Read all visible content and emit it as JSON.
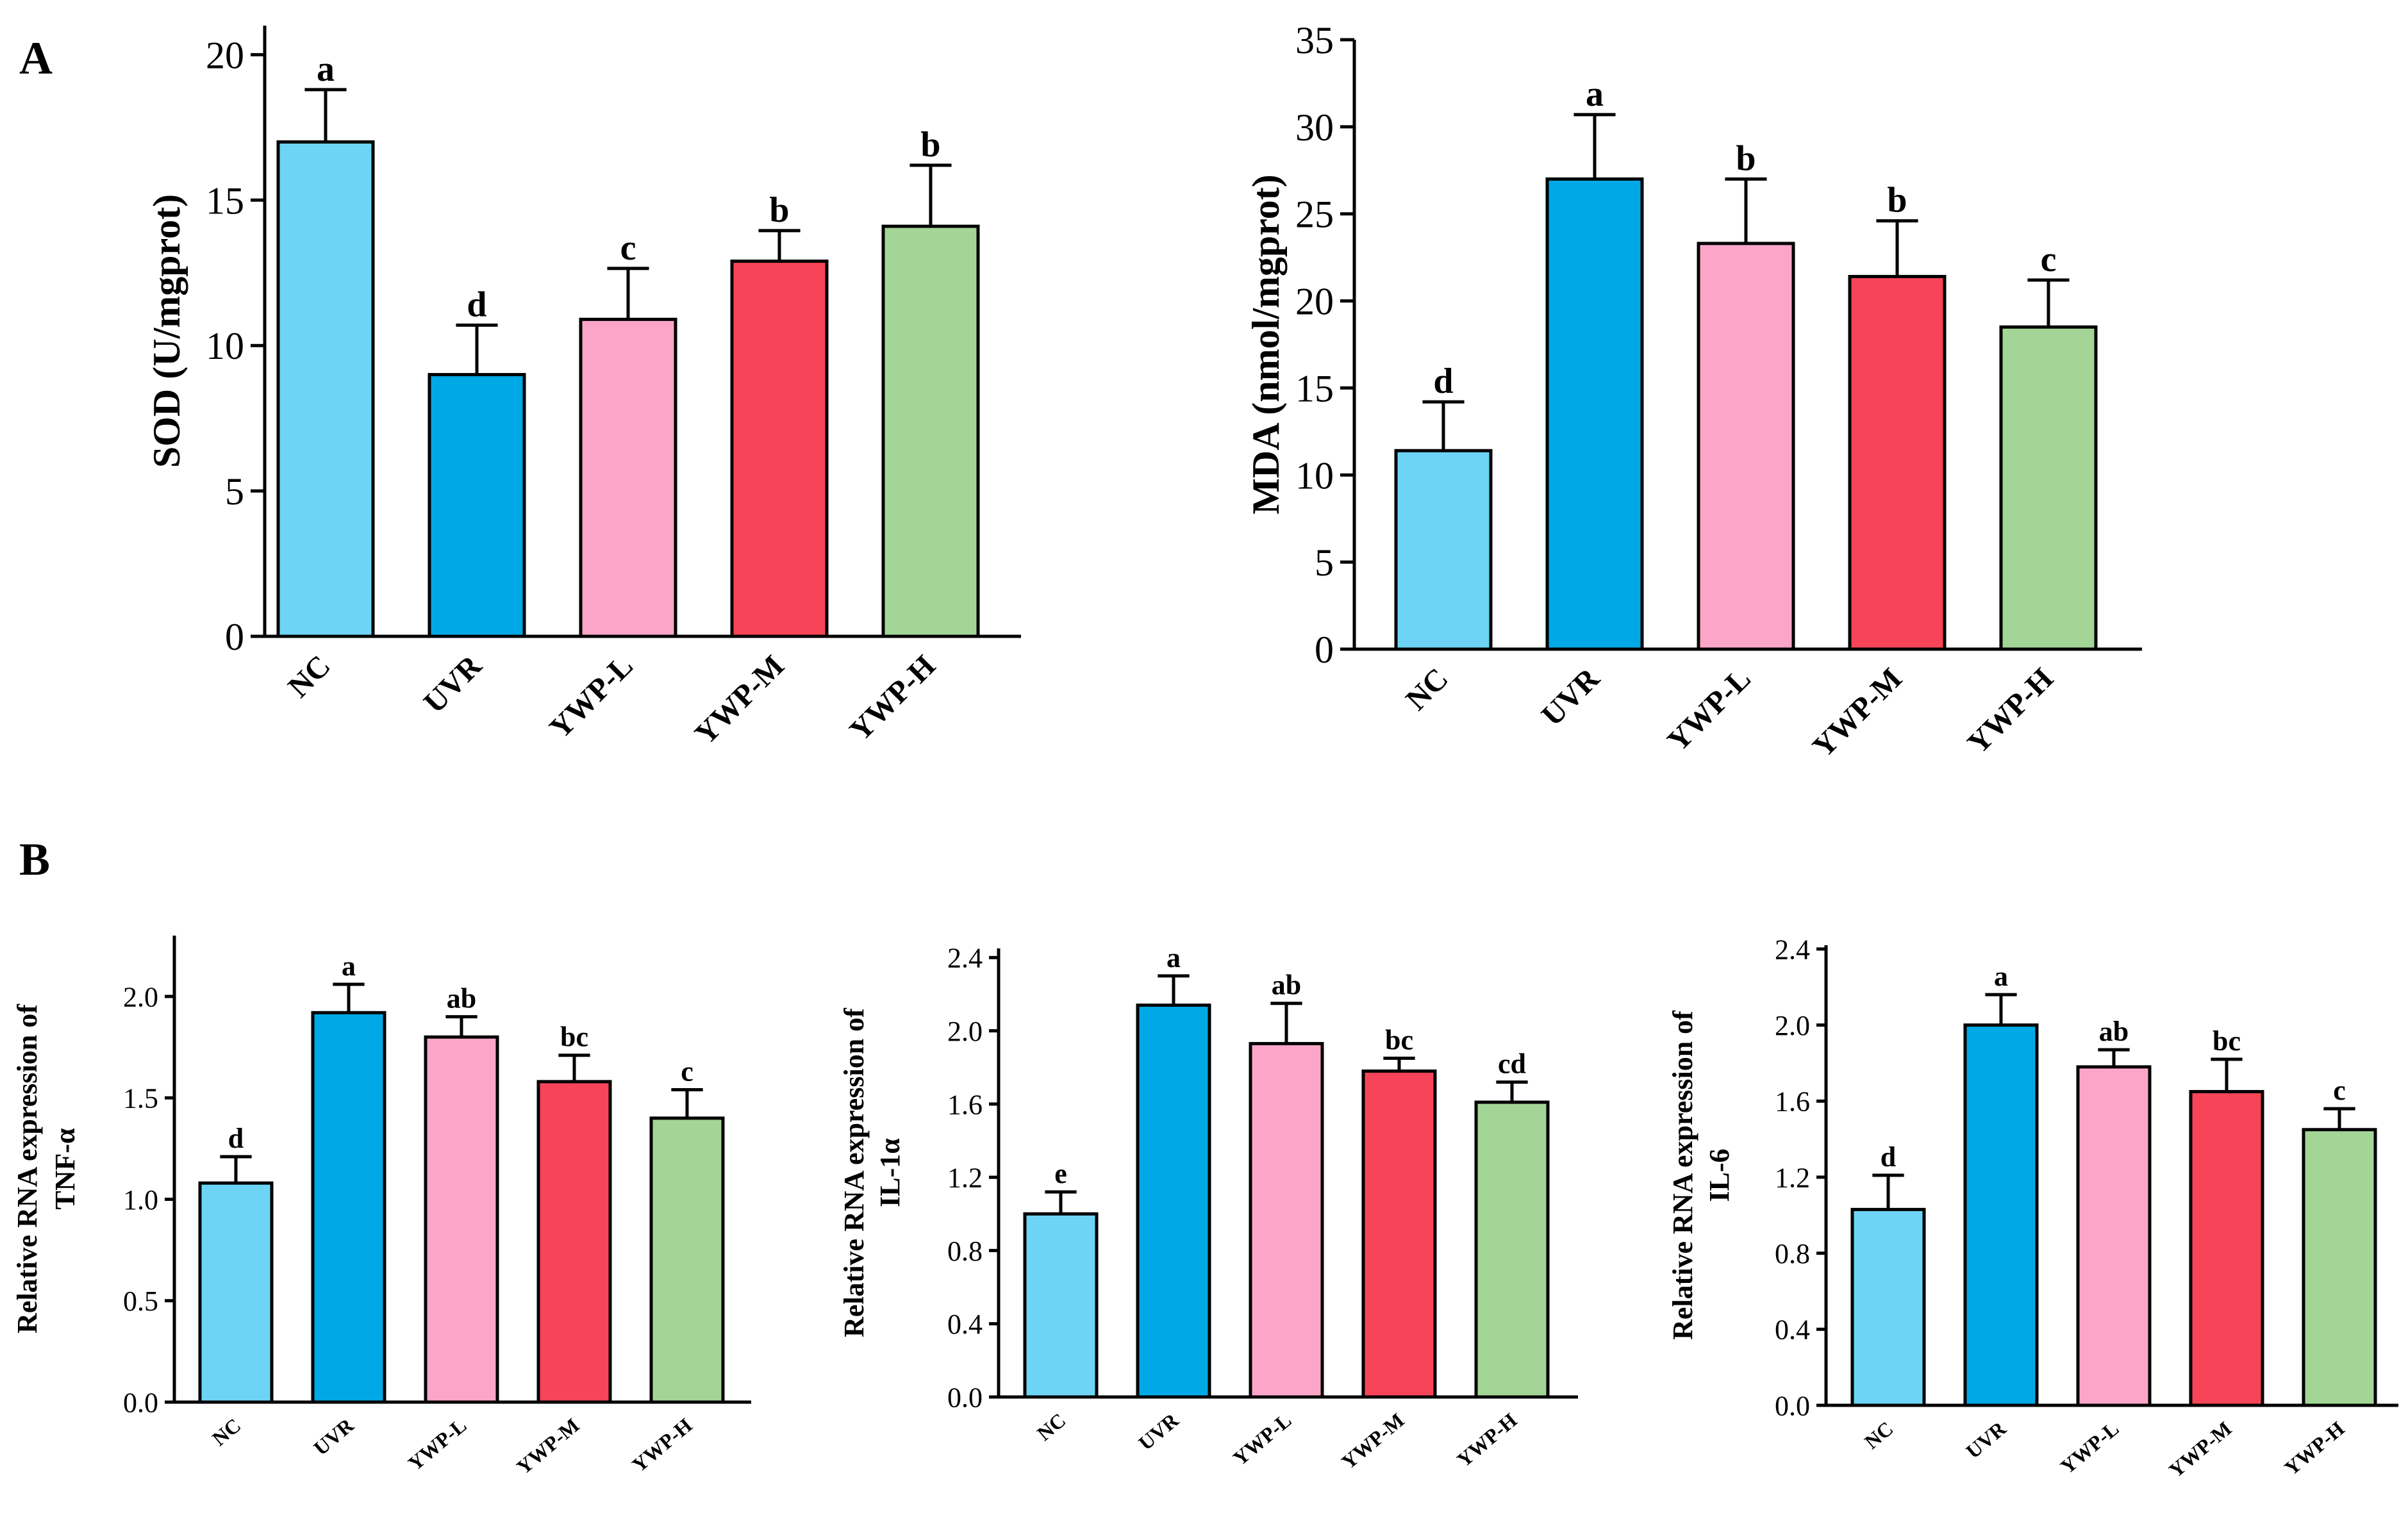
{
  "panels": {
    "A": {
      "label": "A"
    },
    "B": {
      "label": "B"
    }
  },
  "colors": {
    "NC": "#6ed4f6",
    "UVR": "#00a9e6",
    "YWP-L": "#fba6c9",
    "YWP-M": "#f74458",
    "YWP-H": "#a3d696",
    "axis": "#000000"
  },
  "chart_data": [
    {
      "id": "sod",
      "type": "bar",
      "panel": "A",
      "ylabel": "SOD (U/mgprot)",
      "categories": [
        "NC",
        "UVR",
        "YWP-L",
        "YWP-M",
        "YWP-H"
      ],
      "values": [
        17.0,
        9.0,
        10.9,
        12.9,
        14.1
      ],
      "errors": [
        1.8,
        1.7,
        1.75,
        1.05,
        2.1
      ],
      "significance": [
        "a",
        "d",
        "c",
        "b",
        "b"
      ],
      "ylim": [
        0,
        21
      ],
      "yticks": [
        0,
        5,
        10,
        15,
        20
      ],
      "ytick_labels": [
        "0",
        "5",
        "10",
        "15",
        "20"
      ]
    },
    {
      "id": "mda",
      "type": "bar",
      "panel": "A",
      "ylabel": "MDA (nmol/mgprot)",
      "categories": [
        "NC",
        "UVR",
        "YWP-L",
        "YWP-M",
        "YWP-H"
      ],
      "values": [
        11.4,
        27.0,
        23.3,
        21.4,
        18.5
      ],
      "errors": [
        2.8,
        3.7,
        3.7,
        3.2,
        2.7
      ],
      "significance": [
        "d",
        "a",
        "b",
        "b",
        "c"
      ],
      "ylim": [
        0,
        35
      ],
      "yticks": [
        0,
        5,
        10,
        15,
        20,
        25,
        30,
        35
      ],
      "ytick_labels": [
        "0",
        "5",
        "10",
        "15",
        "20",
        "25",
        "30",
        "35"
      ]
    },
    {
      "id": "tnf",
      "type": "bar",
      "panel": "B",
      "ylabel_line1": "Relative RNA expression of",
      "ylabel_line2": "TNF-α",
      "categories": [
        "NC",
        "UVR",
        "YWP-L",
        "YWP-M",
        "YWP-H"
      ],
      "values": [
        1.08,
        1.92,
        1.8,
        1.58,
        1.4
      ],
      "errors": [
        0.13,
        0.14,
        0.1,
        0.13,
        0.14
      ],
      "significance": [
        "d",
        "a",
        "ab",
        "bc",
        "c"
      ],
      "ylim": [
        0,
        2.3
      ],
      "yticks": [
        0,
        0.5,
        1.0,
        1.5,
        2.0
      ],
      "ytick_labels": [
        "0.0",
        "0.5",
        "1.0",
        "1.5",
        "2.0"
      ]
    },
    {
      "id": "il1a",
      "type": "bar",
      "panel": "B",
      "ylabel_line1": "Relative RNA expression of",
      "ylabel_line2": "IL-1α",
      "categories": [
        "NC",
        "UVR",
        "YWP-L",
        "YWP-M",
        "YWP-H"
      ],
      "values": [
        1.0,
        2.14,
        1.93,
        1.78,
        1.61
      ],
      "errors": [
        0.12,
        0.16,
        0.22,
        0.07,
        0.11
      ],
      "significance": [
        "e",
        "a",
        "ab",
        "bc",
        "cd"
      ],
      "ylim": [
        0,
        2.45
      ],
      "yticks": [
        0,
        0.4,
        0.8,
        1.2,
        1.6,
        2.0,
        2.4
      ],
      "ytick_labels": [
        "0.0",
        "0.4",
        "0.8",
        "1.2",
        "1.6",
        "2.0",
        "2.4"
      ]
    },
    {
      "id": "il6",
      "type": "bar",
      "panel": "B",
      "ylabel_line1": "Relative RNA expression of",
      "ylabel_line2": "IL-6",
      "categories": [
        "NC",
        "UVR",
        "YWP-L",
        "YWP-M",
        "YWP-H"
      ],
      "values": [
        1.03,
        2.0,
        1.78,
        1.65,
        1.45
      ],
      "errors": [
        0.18,
        0.16,
        0.09,
        0.17,
        0.11
      ],
      "significance": [
        "d",
        "a",
        "ab",
        "bc",
        "c"
      ],
      "ylim": [
        0,
        2.42
      ],
      "yticks": [
        0,
        0.4,
        0.8,
        1.2,
        1.6,
        2.0,
        2.4
      ],
      "ytick_labels": [
        "0.0",
        "0.4",
        "0.8",
        "1.2",
        "1.6",
        "2.0",
        "2.4"
      ]
    }
  ]
}
